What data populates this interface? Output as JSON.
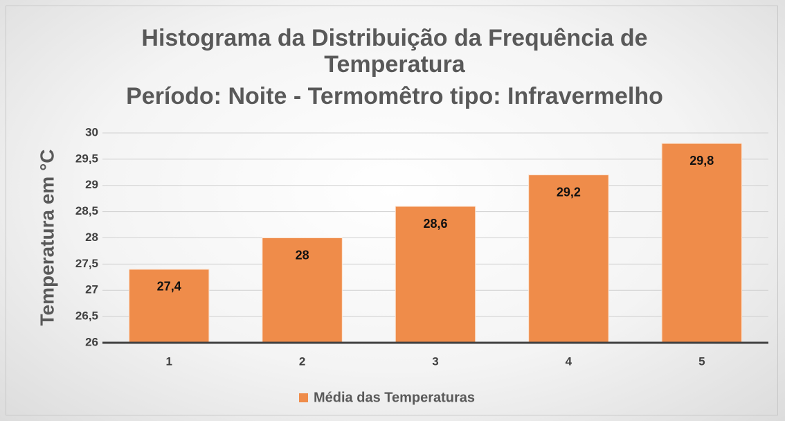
{
  "chart_data": {
    "type": "bar",
    "title": "Histograma da Distribuição da Frequência de Temperatura",
    "subtitle": "Período: Noite - Termomêtro tipo: Infravermelho",
    "y_label": "Temperatura em °C",
    "categories": [
      "1",
      "2",
      "3",
      "4",
      "5"
    ],
    "series": [
      {
        "name": "Média das Temperaturas",
        "color": "#ef8c4a",
        "values": [
          27.4,
          28,
          28.6,
          29.2,
          29.8
        ],
        "value_labels": [
          "27,4",
          "28",
          "28,6",
          "29,2",
          "29,8"
        ]
      }
    ],
    "ylim": [
      26,
      30
    ],
    "yticks": [
      26,
      {
        "value": 26.5,
        "label": "26,5"
      },
      27,
      {
        "value": 27.5,
        "label": "27,5"
      },
      28,
      {
        "value": 28.5,
        "label": "28,5"
      },
      29,
      {
        "value": 29.5,
        "label": "29,5"
      },
      30
    ],
    "grid": true,
    "legend": "bottom"
  }
}
